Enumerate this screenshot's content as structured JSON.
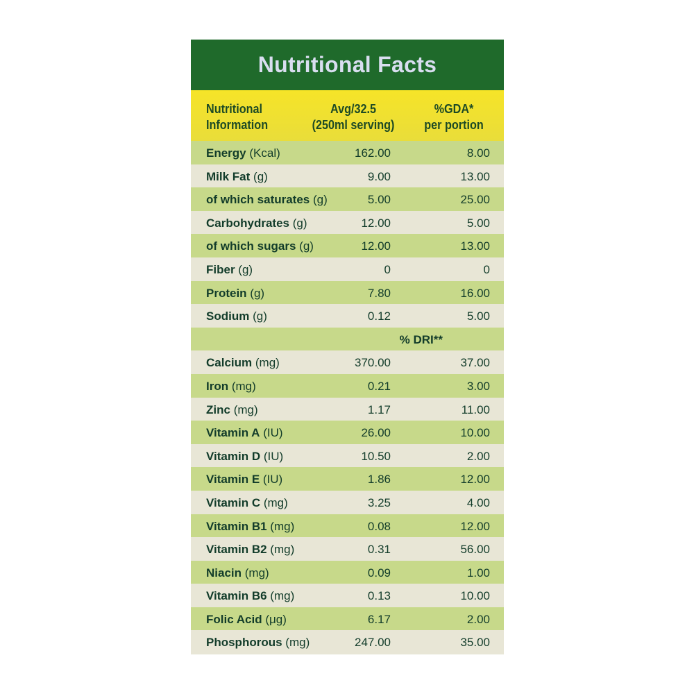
{
  "title": "Nutritional Facts",
  "header": {
    "col1_line1": "Nutritional",
    "col1_line2": "Information",
    "col2_line1": "Avg/32.5",
    "col2_line2": "(250ml serving)",
    "col3_line1": "%GDA*",
    "col3_line2": "per portion"
  },
  "rows": [
    {
      "name": "Energy",
      "unit": "(Kcal)",
      "avg": "162.00",
      "pct": "8.00"
    },
    {
      "name": "Milk Fat",
      "unit": "(g)",
      "avg": "9.00",
      "pct": "13.00"
    },
    {
      "name": "of which saturates",
      "unit": "(g)",
      "avg": "5.00",
      "pct": "25.00"
    },
    {
      "name": "Carbohydrates",
      "unit": "(g)",
      "avg": "12.00",
      "pct": "5.00"
    },
    {
      "name": "of which sugars",
      "unit": "(g)",
      "avg": "12.00",
      "pct": "13.00"
    },
    {
      "name": "Fiber",
      "unit": "(g)",
      "avg": "0",
      "pct": "0"
    },
    {
      "name": "Protein",
      "unit": "(g)",
      "avg": "7.80",
      "pct": "16.00"
    },
    {
      "name": "Sodium",
      "unit": "(g)",
      "avg": "0.12",
      "pct": "5.00"
    },
    {
      "name": "",
      "unit": "",
      "avg": "",
      "pct": "% DRI**"
    },
    {
      "name": "Calcium",
      "unit": "(mg)",
      "avg": "370.00",
      "pct": "37.00"
    },
    {
      "name": "Iron",
      "unit": "(mg)",
      "avg": "0.21",
      "pct": "3.00"
    },
    {
      "name": "Zinc",
      "unit": "(mg)",
      "avg": "1.17",
      "pct": "11.00"
    },
    {
      "name": "Vitamin A",
      "unit": "(IU)",
      "avg": "26.00",
      "pct": "10.00"
    },
    {
      "name": "Vitamin D",
      "unit": "(IU)",
      "avg": "10.50",
      "pct": "2.00"
    },
    {
      "name": "Vitamin E",
      "unit": "(IU)",
      "avg": "1.86",
      "pct": "12.00"
    },
    {
      "name": "Vitamin C",
      "unit": "(mg)",
      "avg": "3.25",
      "pct": "4.00"
    },
    {
      "name": "Vitamin B1",
      "unit": "(mg)",
      "avg": "0.08",
      "pct": "12.00"
    },
    {
      "name": "Vitamin B2",
      "unit": "(mg)",
      "avg": "0.31",
      "pct": "56.00"
    },
    {
      "name": "Niacin",
      "unit": "(mg)",
      "avg": "0.09",
      "pct": "1.00"
    },
    {
      "name": "Vitamin B6",
      "unit": "(mg)",
      "avg": "0.13",
      "pct": "10.00"
    },
    {
      "name": "Folic Acid",
      "unit": " (μg)",
      "avg": "6.17",
      "pct": "2.00"
    },
    {
      "name": "Phosphorous",
      "unit": "(mg)",
      "avg": "247.00",
      "pct": "35.00"
    }
  ],
  "colors": {
    "title_bg": "#1f6a2b",
    "title_text": "#d9def0",
    "header_bg": "#f6e428",
    "row_green": "#c7d98a",
    "row_cream": "#e8e6d6",
    "text": "#123c2a"
  }
}
